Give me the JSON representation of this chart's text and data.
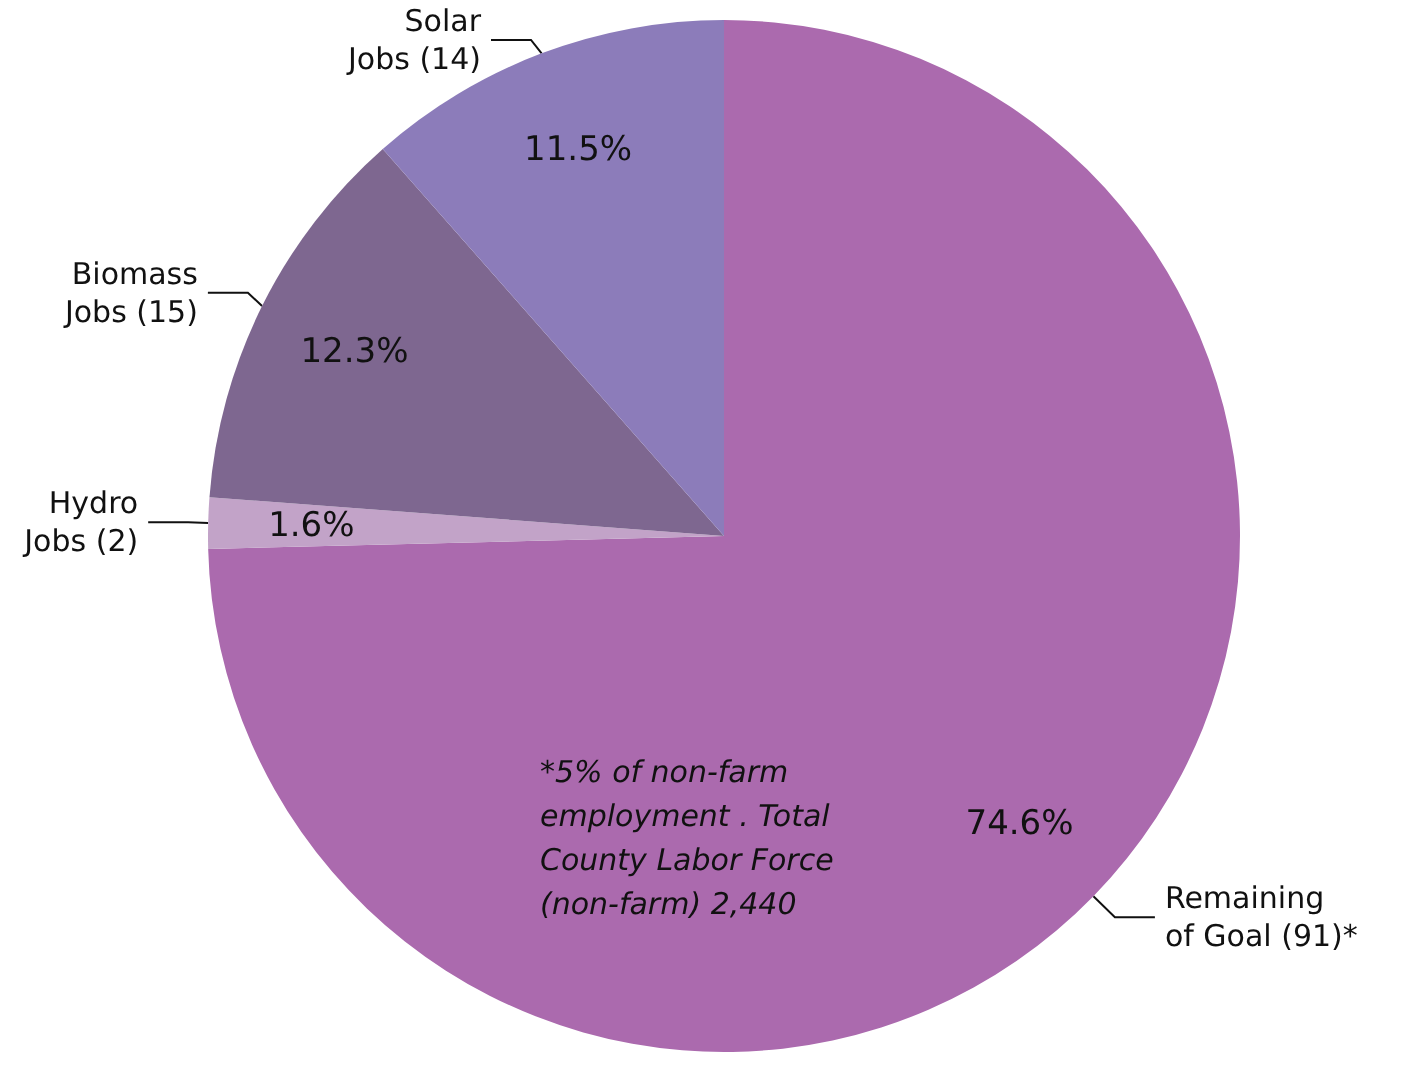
{
  "chart_data": {
    "type": "pie",
    "categories": [
      "Remaining of Goal (91)*",
      "Hydro Jobs (2)",
      "Biomass Jobs (15)",
      "Solar Jobs (14)"
    ],
    "values": [
      74.6,
      1.6,
      12.3,
      11.5
    ],
    "value_labels": [
      "74.6%",
      "1.6%",
      "12.3%",
      "11.5%"
    ],
    "colors": [
      "#ab6aae",
      "#c2a3c8",
      "#7e6790",
      "#8c7cba"
    ],
    "annotations": [
      "*5% of non-farm employment . Total County Labor Force (non-farm) 2,440"
    ],
    "legend": false
  }
}
